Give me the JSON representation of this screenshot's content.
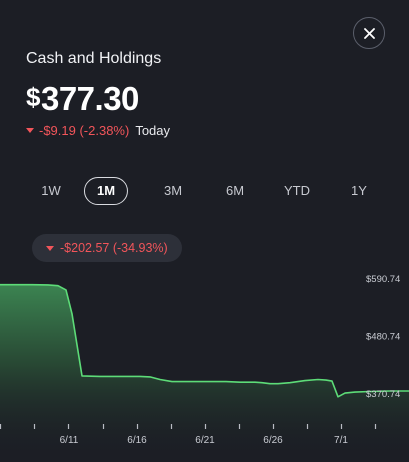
{
  "header": {
    "title": "Cash and Holdings",
    "currency_symbol": "$",
    "amount": "377.30",
    "day_change": "-$9.19 (-2.38%)",
    "day_label": "Today"
  },
  "ranges": [
    "1W",
    "1M",
    "3M",
    "6M",
    "YTD",
    "1Y"
  ],
  "active_range": "1M",
  "period_change": "-$202.57 (-34.93%)",
  "colors": {
    "negative": "#f2555a",
    "line": "#5ddc78",
    "background": "#1c1e25"
  },
  "icons": {
    "close": "close-icon",
    "change_arrow": "triangle-down-icon"
  },
  "chart_data": {
    "type": "area",
    "ytick_labels": [
      "$590.74",
      "$480.74",
      "$370.74"
    ],
    "yticks": [
      590.74,
      480.74,
      370.74
    ],
    "xtick_labels": [
      "6/11",
      "6/16",
      "6/21",
      "6/26",
      "7/1"
    ],
    "x": [
      "6/5",
      "6/6",
      "6/7",
      "6/8",
      "6/9",
      "6/10",
      "6/10",
      "6/11",
      "6/12",
      "6/13",
      "6/14",
      "6/15",
      "6/16",
      "6/17",
      "6/18",
      "6/19",
      "6/20",
      "6/21",
      "6/22",
      "6/23",
      "6/24",
      "6/25",
      "6/26",
      "6/27",
      "6/28",
      "6/29",
      "6/30",
      "6/30",
      "7/1",
      "7/2",
      "7/3",
      "7/4",
      "7/5",
      "7/6"
    ],
    "values": [
      579.9,
      579.9,
      579.9,
      579.5,
      578,
      570,
      524,
      405,
      404,
      404,
      404,
      404,
      403,
      398,
      394,
      394,
      394,
      394,
      393,
      393,
      392,
      390,
      390,
      392,
      396,
      398,
      397,
      395,
      365,
      372,
      374,
      375,
      376,
      376
    ],
    "ylim": [
      330,
      610
    ],
    "line_color": "#5ddc78"
  }
}
